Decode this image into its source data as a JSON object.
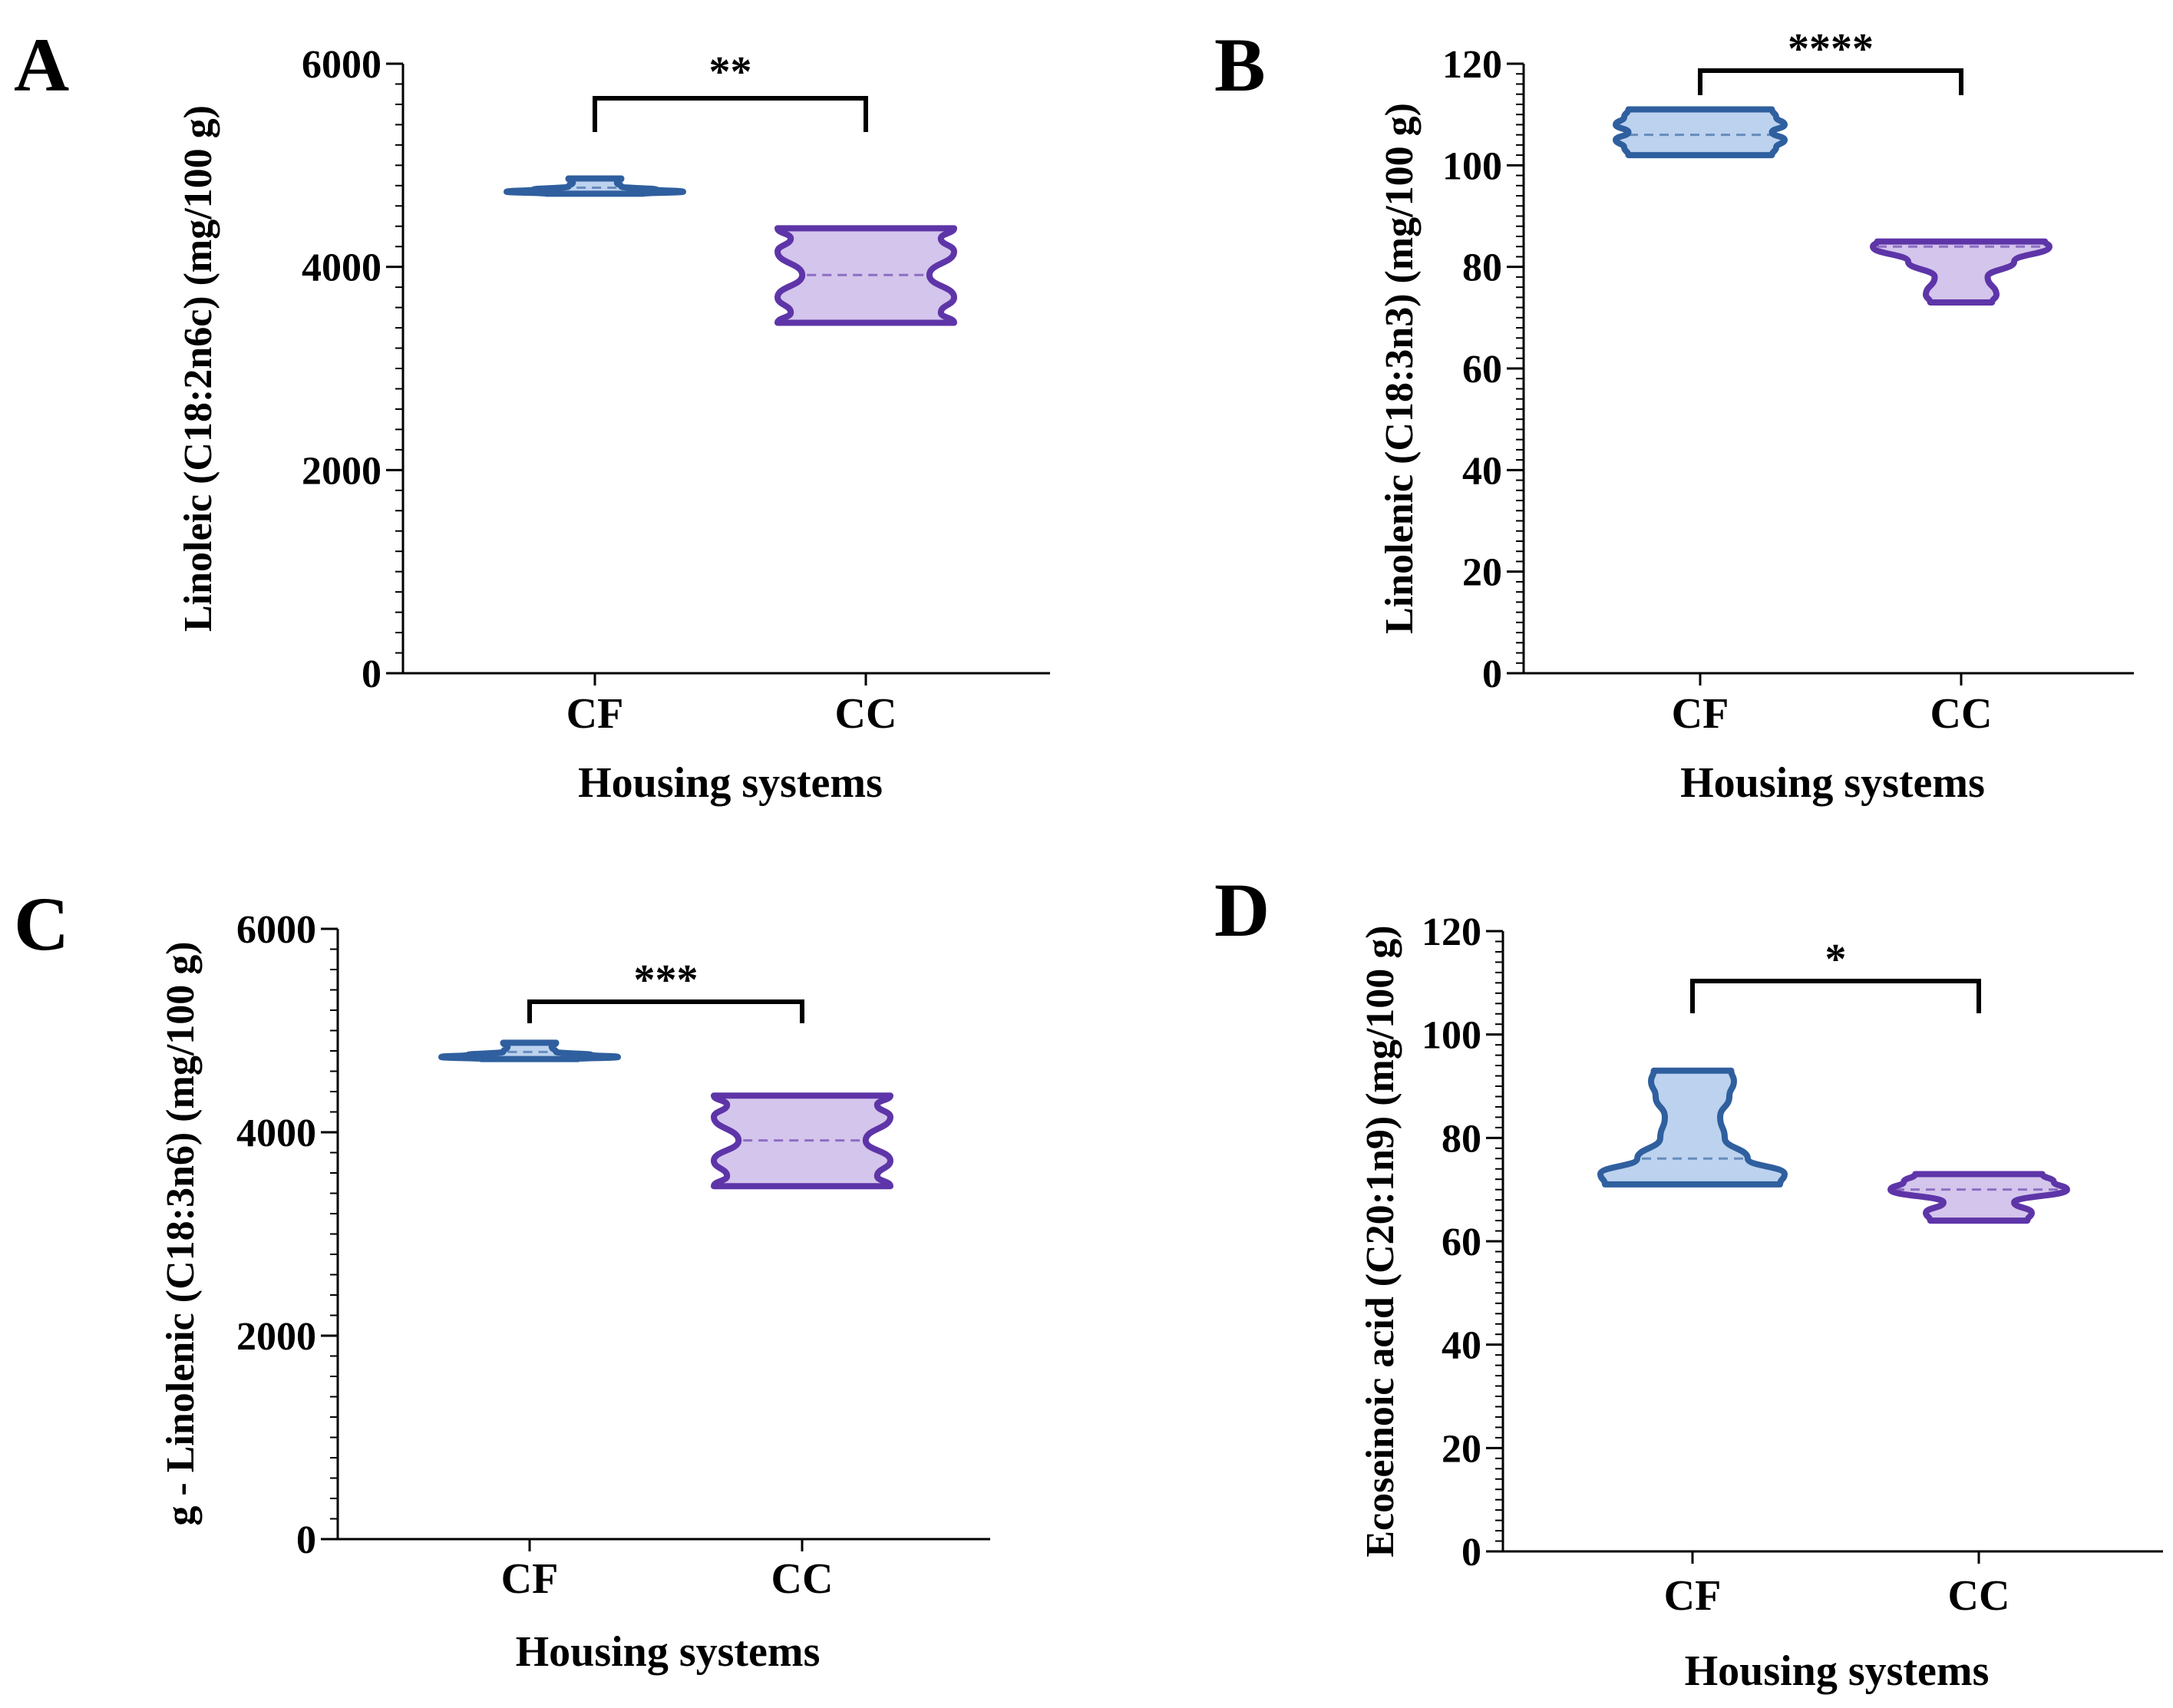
{
  "chart_data": [
    {
      "panel": "A",
      "type": "violin",
      "ylabel": "Linoleic (C18:2n6c) (mg/100 g)",
      "xlabel": "Housing systems",
      "categories": [
        "CF",
        "CC"
      ],
      "yticks": [
        "0",
        "2000",
        "4000",
        "6000"
      ],
      "ylim": [
        0,
        6000
      ],
      "significance": "**",
      "series": [
        {
          "name": "CF",
          "color": "#2f5f9e",
          "fill": "#bcd2ee",
          "min": 4720,
          "max": 4870,
          "median": 4780,
          "shape": [
            [
              4720,
              0.55
            ],
            [
              4740,
              1.0
            ],
            [
              4760,
              0.7
            ],
            [
              4790,
              0.3
            ],
            [
              4830,
              0.25
            ],
            [
              4870,
              0.3
            ]
          ]
        },
        {
          "name": "CC",
          "color": "#5e35a8",
          "fill": "#d4c5ec",
          "min": 3450,
          "max": 4380,
          "median": 3920,
          "shape": [
            [
              3450,
              1.0
            ],
            [
              3550,
              0.85
            ],
            [
              3700,
              1.0
            ],
            [
              3920,
              0.72
            ],
            [
              4150,
              1.0
            ],
            [
              4280,
              0.85
            ],
            [
              4380,
              1.0
            ]
          ]
        }
      ]
    },
    {
      "panel": "B",
      "type": "violin",
      "ylabel": "Linolenic (C18:3n3) (mg/100 g)",
      "xlabel": "Housing systems",
      "categories": [
        "CF",
        "CC"
      ],
      "yticks": [
        "0",
        "20",
        "40",
        "60",
        "80",
        "100",
        "120"
      ],
      "ylim": [
        0,
        120
      ],
      "significance": "****",
      "series": [
        {
          "name": "CF",
          "color": "#2f5f9e",
          "fill": "#bcd2ee",
          "min": 102,
          "max": 111,
          "median": 106,
          "shape": [
            [
              102,
              0.85
            ],
            [
              103.5,
              0.9
            ],
            [
              105,
              1.0
            ],
            [
              106.5,
              0.85
            ],
            [
              108,
              1.0
            ],
            [
              109.5,
              0.9
            ],
            [
              111,
              0.85
            ]
          ]
        },
        {
          "name": "CC",
          "color": "#5e35a8",
          "fill": "#d4c5ec",
          "min": 73,
          "max": 85,
          "median": 84,
          "shape": [
            [
              73,
              0.35
            ],
            [
              74.5,
              0.4
            ],
            [
              78,
              0.3
            ],
            [
              81,
              0.6
            ],
            [
              84,
              1.0
            ],
            [
              85,
              0.95
            ]
          ]
        }
      ]
    },
    {
      "panel": "C",
      "type": "violin",
      "ylabel": "g - Linolenic (C18:3n6) (mg/100 g)",
      "xlabel": "Housing systems",
      "categories": [
        "CF",
        "CC"
      ],
      "yticks": [
        "0",
        "2000",
        "4000",
        "6000"
      ],
      "ylim": [
        0,
        6000
      ],
      "significance": "***",
      "series": [
        {
          "name": "CF",
          "color": "#2f5f9e",
          "fill": "#bcd2ee",
          "min": 4720,
          "max": 4880,
          "median": 4790,
          "shape": [
            [
              4720,
              0.55
            ],
            [
              4740,
              1.0
            ],
            [
              4760,
              0.7
            ],
            [
              4790,
              0.3
            ],
            [
              4840,
              0.25
            ],
            [
              4880,
              0.3
            ]
          ]
        },
        {
          "name": "CC",
          "color": "#5e35a8",
          "fill": "#d4c5ec",
          "min": 3470,
          "max": 4360,
          "median": 3920,
          "shape": [
            [
              3470,
              1.0
            ],
            [
              3570,
              0.85
            ],
            [
              3720,
              1.0
            ],
            [
              3920,
              0.72
            ],
            [
              4150,
              1.0
            ],
            [
              4270,
              0.85
            ],
            [
              4360,
              1.0
            ]
          ]
        }
      ]
    },
    {
      "panel": "D",
      "type": "violin",
      "ylabel": "Ecoseinoic acid (C20:1n9) (mg/100 g)",
      "xlabel": "Housing systems",
      "categories": [
        "CF",
        "CC"
      ],
      "yticks": [
        "0",
        "20",
        "40",
        "60",
        "80",
        "100",
        "120"
      ],
      "ylim": [
        0,
        120
      ],
      "significance": "*",
      "series": [
        {
          "name": "CF",
          "color": "#2f5f9e",
          "fill": "#bcd2ee",
          "min": 71,
          "max": 93,
          "median": 76,
          "shape": [
            [
              71,
              0.95
            ],
            [
              73,
              1.0
            ],
            [
              76,
              0.6
            ],
            [
              80,
              0.35
            ],
            [
              84,
              0.3
            ],
            [
              88,
              0.4
            ],
            [
              91,
              0.45
            ],
            [
              93,
              0.42
            ]
          ]
        },
        {
          "name": "CC",
          "color": "#5e35a8",
          "fill": "#d4c5ec",
          "min": 64,
          "max": 73,
          "median": 70,
          "shape": [
            [
              64,
              0.55
            ],
            [
              65.5,
              0.6
            ],
            [
              67.5,
              0.4
            ],
            [
              70,
              1.0
            ],
            [
              71.5,
              0.85
            ],
            [
              73,
              0.72
            ]
          ]
        }
      ]
    }
  ]
}
